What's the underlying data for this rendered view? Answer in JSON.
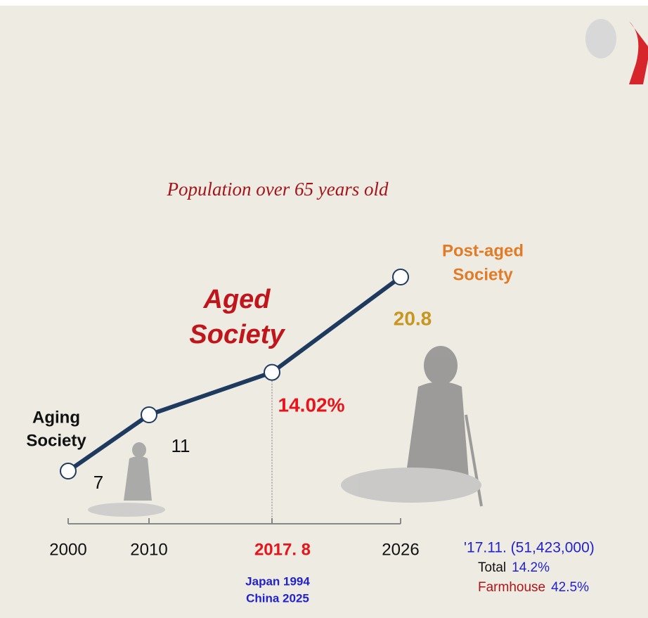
{
  "chart_data": {
    "type": "line",
    "title": "Population over 65 years old",
    "categories": [
      "2000",
      "2010",
      "2017. 8",
      "2026"
    ],
    "category_colors": [
      "#111111",
      "#111111",
      "#e8141b",
      "#111111"
    ],
    "series": [
      {
        "name": "Population over 65",
        "color": "#1f3a5f",
        "values": [
          7,
          11,
          14.02,
          20.8
        ],
        "value_labels": [
          "7",
          "11",
          "14.02%",
          "20.8"
        ],
        "label_colors": [
          "#111111",
          "#111111",
          "#e8141b",
          "#c8961e"
        ]
      }
    ],
    "ylim": [
      0,
      25
    ],
    "annotations": [
      {
        "lines": [
          "Aging",
          "Society"
        ],
        "color": "#111111"
      },
      {
        "lines": [
          "Aged",
          "Society"
        ],
        "color": "#c0161b"
      },
      {
        "lines": [
          "Post-aged",
          "Society"
        ],
        "color": "#e07b28"
      }
    ],
    "sub_notes": [
      "Japan 1994",
      "China 2025"
    ],
    "side_note": {
      "header": "'17.11. (51,423,000)",
      "total_label": "Total",
      "total_value": "14.2%",
      "farm_label": "Farmhouse",
      "farm_value": "42.5%"
    }
  }
}
